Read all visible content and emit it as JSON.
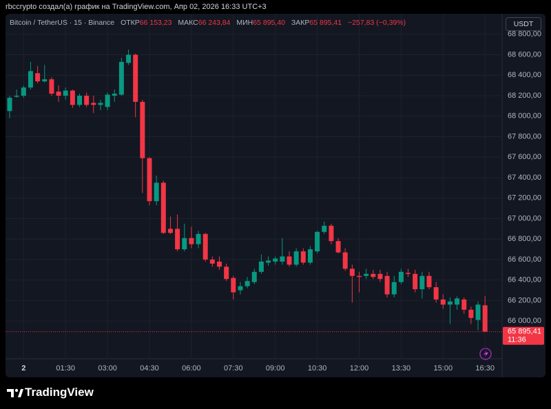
{
  "header": {
    "published_by": "rbccrypto создал(а) график на TradingView.com, Апр 02, 2026 16:33 UTC+3"
  },
  "legend": {
    "symbol": "Bitcoin / TetherUS · 15 · Binance",
    "open_label": "ОТКР",
    "open": "66 153,23",
    "high_label": "МАКС",
    "high": "66 243,84",
    "low_label": "МИН",
    "low": "65 895,40",
    "close_label": "ЗАКР",
    "close": "65 895,41",
    "change": "−257,83 (−0,39%)"
  },
  "currency": "USDT",
  "footer": {
    "brand": "TradingView"
  },
  "chart_data": {
    "type": "candlestick",
    "categories": [
      null,
      null,
      "2",
      null,
      null,
      null,
      null,
      null,
      "01:30",
      null,
      null,
      null,
      null,
      null,
      "03:00",
      null,
      null,
      null,
      null,
      null,
      "04:30",
      null,
      null,
      null,
      null,
      null,
      "06:00",
      null,
      null,
      null,
      null,
      null,
      "07:30",
      null,
      null,
      null,
      null,
      null,
      "09:00",
      null,
      null,
      null,
      null,
      null,
      "10:30",
      null,
      null,
      null,
      null,
      null,
      "12:00",
      null,
      null,
      null,
      null,
      null,
      "13:30",
      null,
      null,
      null,
      null,
      null,
      "15:00",
      null,
      null,
      null,
      null,
      null,
      "16:30"
    ],
    "open": [
      68050,
      68190,
      68200,
      68280,
      68420,
      68340,
      68360,
      68240,
      68200,
      68250,
      68110,
      68200,
      68130,
      68110,
      68090,
      68200,
      68210,
      68520,
      68600,
      68140,
      67590,
      67170,
      67350,
      66900,
      66900,
      66700,
      66810,
      66750,
      66850,
      66600,
      66580,
      66530,
      66420,
      66300,
      66340,
      66380,
      66480,
      66570,
      66580,
      66580,
      66630,
      66550,
      66680,
      66570,
      66680,
      66870,
      66930,
      66780,
      66670,
      66510,
      66440,
      66440,
      66460,
      66460,
      66440,
      66260,
      66380,
      66470,
      66460,
      66310,
      66440,
      66330,
      66210,
      66160,
      66160,
      66210,
      66110,
      66010,
      66153.23
    ],
    "high": [
      68200,
      68260,
      68300,
      68530,
      68490,
      68500,
      68380,
      68300,
      68280,
      68260,
      68220,
      68230,
      68200,
      68160,
      68230,
      68260,
      68570,
      68650,
      68610,
      68160,
      67600,
      67420,
      67370,
      67020,
      67040,
      66950,
      66920,
      66880,
      66860,
      66630,
      66630,
      66560,
      66440,
      66380,
      66430,
      66510,
      66650,
      66630,
      66630,
      66810,
      66680,
      66710,
      66710,
      66730,
      66880,
      66970,
      66950,
      66810,
      66710,
      66550,
      66480,
      66510,
      66500,
      66500,
      66480,
      66440,
      66510,
      66510,
      66500,
      66480,
      66480,
      66380,
      66260,
      66230,
      66240,
      66230,
      66140,
      66190,
      66243.84
    ],
    "low": [
      67980,
      68180,
      68180,
      68260,
      68320,
      68330,
      68200,
      68140,
      68160,
      68080,
      68090,
      68090,
      68030,
      68060,
      68060,
      68140,
      68200,
      68500,
      67990,
      67250,
      67130,
      67130,
      66850,
      66850,
      66680,
      66680,
      66710,
      66710,
      66580,
      66530,
      66500,
      66390,
      66210,
      66260,
      66320,
      66360,
      66460,
      66540,
      66550,
      66550,
      66530,
      66530,
      66550,
      66550,
      66660,
      66850,
      66750,
      66660,
      66490,
      66180,
      66280,
      66410,
      66410,
      66380,
      66230,
      66230,
      66360,
      66430,
      66280,
      66220,
      66310,
      66180,
      66120,
      65970,
      66110,
      66070,
      65970,
      65910,
      65895.4
    ],
    "close": [
      68180,
      68200,
      68280,
      68440,
      68340,
      68360,
      68220,
      68200,
      68250,
      68110,
      68200,
      68110,
      68110,
      68130,
      68210,
      68220,
      68530,
      68600,
      68140,
      67590,
      67170,
      67350,
      66860,
      66860,
      66700,
      66810,
      66750,
      66850,
      66600,
      66560,
      66530,
      66410,
      66280,
      66340,
      66390,
      66480,
      66580,
      66590,
      66610,
      66630,
      66550,
      66680,
      66570,
      66700,
      66870,
      66930,
      66780,
      66670,
      66510,
      66440,
      66430,
      66460,
      66430,
      66410,
      66260,
      66380,
      66480,
      66460,
      66310,
      66440,
      66330,
      66210,
      66160,
      66190,
      66220,
      66110,
      66030,
      66160,
      65895.41
    ],
    "up_color": "#089981",
    "down_color": "#f23645",
    "ylim": [
      65470,
      69000
    ],
    "yticks": [
      {
        "value": 66000,
        "label": "66 000,00"
      },
      {
        "value": 66200,
        "label": "66 200,00"
      },
      {
        "value": 66400,
        "label": "66 400,00"
      },
      {
        "value": 66600,
        "label": "66 600,00"
      },
      {
        "value": 66800,
        "label": "66 800,00"
      },
      {
        "value": 67000,
        "label": "67 000,00"
      },
      {
        "value": 67200,
        "label": "67 200,00"
      },
      {
        "value": 67400,
        "label": "67 400,00"
      },
      {
        "value": 67600,
        "label": "67 600,00"
      },
      {
        "value": 67800,
        "label": "67 800,00"
      },
      {
        "value": 68000,
        "label": "68 000,00"
      },
      {
        "value": 68200,
        "label": "68 200,00"
      },
      {
        "value": 68400,
        "label": "68 400,00"
      },
      {
        "value": 68600,
        "label": "68 600,00"
      },
      {
        "value": 68800,
        "label": "68 800,00"
      }
    ],
    "grid": true,
    "price_tag": {
      "value": 65895.41,
      "label": "65 895,41",
      "countdown": "11:36"
    }
  }
}
